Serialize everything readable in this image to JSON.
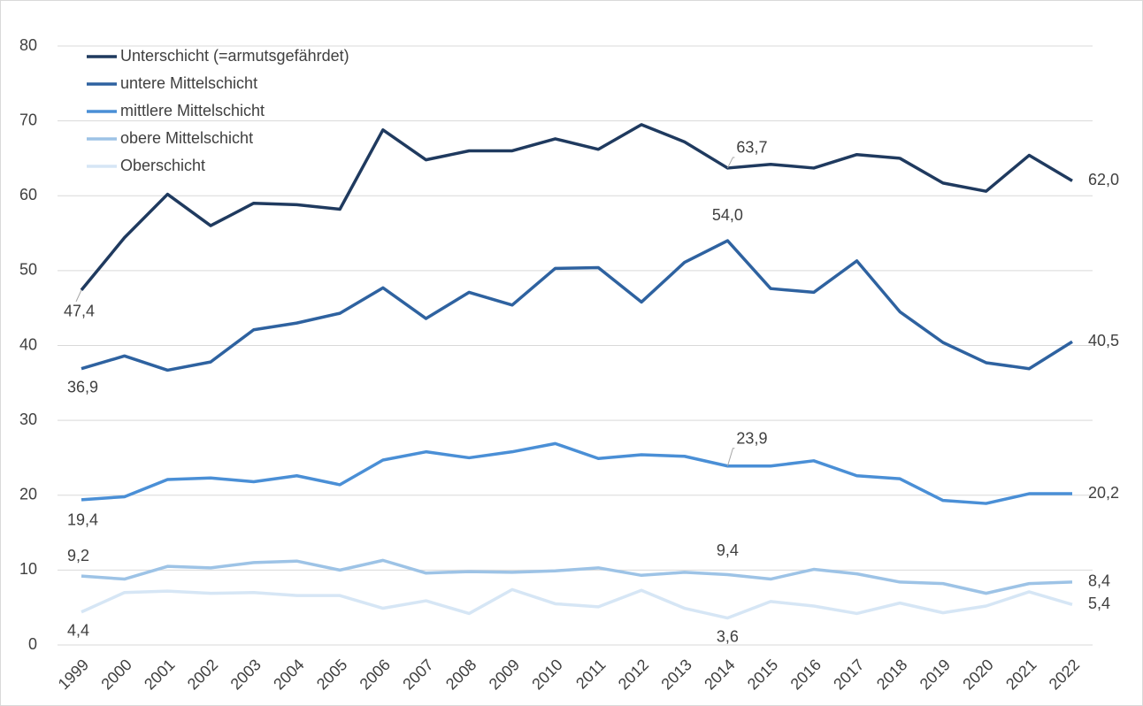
{
  "chart_data": {
    "type": "line",
    "categories": [
      "1999",
      "2000",
      "2001",
      "2002",
      "2003",
      "2004",
      "2005",
      "2006",
      "2007",
      "2008",
      "2009",
      "2010",
      "2011",
      "2012",
      "2013",
      "2014",
      "2015",
      "2016",
      "2017",
      "2018",
      "2019",
      "2020",
      "2021",
      "2022"
    ],
    "ylim": [
      0,
      80
    ],
    "yticks": [
      0,
      10,
      20,
      30,
      40,
      50,
      60,
      70,
      80
    ],
    "grid": true,
    "legend": "upper left",
    "series": [
      {
        "name": "Unterschicht (=armutsgefährdet)",
        "color": "#1f3a5f",
        "values": [
          47.4,
          54.4,
          60.2,
          56.0,
          59.0,
          58.8,
          58.2,
          68.8,
          64.8,
          66.0,
          66.0,
          67.6,
          66.2,
          69.5,
          67.2,
          63.7,
          64.2,
          63.7,
          65.5,
          65.0,
          61.7,
          60.6,
          65.4,
          62.0
        ],
        "value_labels": [
          "47,4",
          null,
          null,
          null,
          null,
          null,
          null,
          null,
          null,
          null,
          null,
          null,
          null,
          null,
          null,
          "63,7",
          null,
          null,
          null,
          null,
          null,
          null,
          null,
          "62,0"
        ]
      },
      {
        "name": "untere Mittelschicht",
        "color": "#2e62a0",
        "values": [
          36.9,
          38.6,
          36.7,
          37.8,
          42.1,
          43.0,
          44.3,
          47.7,
          43.6,
          47.1,
          45.4,
          50.3,
          50.4,
          45.8,
          51.1,
          54.0,
          47.6,
          47.1,
          51.3,
          44.5,
          40.4,
          37.7,
          36.9,
          40.5
        ],
        "value_labels": [
          "36,9",
          null,
          null,
          null,
          null,
          null,
          null,
          null,
          null,
          null,
          null,
          null,
          null,
          null,
          null,
          "54,0",
          null,
          null,
          null,
          null,
          null,
          null,
          null,
          "40,5"
        ]
      },
      {
        "name": "mittlere Mittelschicht",
        "color": "#4a8fd6",
        "values": [
          19.4,
          19.8,
          22.1,
          22.3,
          21.8,
          22.6,
          21.4,
          24.7,
          25.8,
          25.0,
          25.8,
          26.9,
          24.9,
          25.4,
          25.2,
          23.9,
          23.9,
          24.6,
          22.6,
          22.2,
          19.3,
          18.9,
          20.2,
          20.2
        ],
        "value_labels": [
          "19,4",
          null,
          null,
          null,
          null,
          null,
          null,
          null,
          null,
          null,
          null,
          null,
          null,
          null,
          null,
          "23,9",
          null,
          null,
          null,
          null,
          null,
          null,
          null,
          "20,2"
        ]
      },
      {
        "name": "obere Mittelschicht",
        "color": "#9dc3e6",
        "values": [
          9.2,
          8.8,
          10.5,
          10.3,
          11.0,
          11.2,
          10.0,
          11.3,
          9.6,
          9.8,
          9.7,
          9.9,
          10.3,
          9.3,
          9.7,
          9.4,
          8.8,
          10.1,
          9.5,
          8.4,
          8.2,
          6.9,
          8.2,
          8.4
        ],
        "value_labels": [
          "9,2",
          null,
          null,
          null,
          null,
          null,
          null,
          null,
          null,
          null,
          null,
          null,
          null,
          null,
          null,
          "9,4",
          null,
          null,
          null,
          null,
          null,
          null,
          null,
          "8,4"
        ]
      },
      {
        "name": "Oberschicht",
        "color": "#d6e6f5",
        "values": [
          4.4,
          7.0,
          7.2,
          6.9,
          7.0,
          6.6,
          6.6,
          4.9,
          5.9,
          4.2,
          7.4,
          5.5,
          5.1,
          7.3,
          4.9,
          3.6,
          5.8,
          5.2,
          4.2,
          5.6,
          4.3,
          5.2,
          7.1,
          5.4
        ],
        "value_labels": [
          "4,4",
          null,
          null,
          null,
          null,
          null,
          null,
          null,
          null,
          null,
          null,
          null,
          null,
          null,
          null,
          "3,6",
          null,
          null,
          null,
          null,
          null,
          null,
          null,
          "5,4"
        ]
      }
    ]
  }
}
